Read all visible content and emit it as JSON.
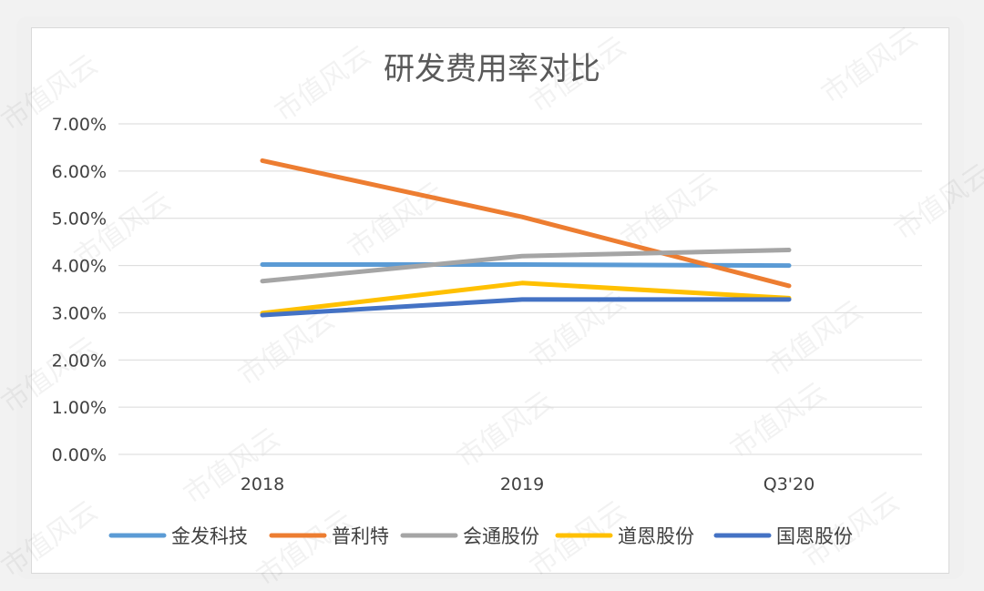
{
  "chart_data": {
    "type": "line",
    "title": "研发费用率对比",
    "categories": [
      "2018",
      "2019",
      "Q3'20"
    ],
    "yticks": [
      "0.00%",
      "1.00%",
      "2.00%",
      "3.00%",
      "4.00%",
      "5.00%",
      "6.00%",
      "7.00%"
    ],
    "ylim": [
      0,
      7
    ],
    "grid": true,
    "legend_position": "bottom",
    "series": [
      {
        "name": "金发科技",
        "values": [
          4.02,
          4.02,
          4.0
        ],
        "color": "#5b9bd5"
      },
      {
        "name": "普利特",
        "values": [
          6.22,
          5.03,
          3.57
        ],
        "color": "#ed7d31"
      },
      {
        "name": "会通股份",
        "values": [
          3.67,
          4.2,
          4.33
        ],
        "color": "#a5a5a5"
      },
      {
        "name": "道恩股份",
        "values": [
          2.99,
          3.63,
          3.31
        ],
        "color": "#ffc000"
      },
      {
        "name": "国恩股份",
        "values": [
          2.95,
          3.28,
          3.28
        ],
        "color": "#4472c4"
      }
    ]
  },
  "watermark": "市值风云"
}
